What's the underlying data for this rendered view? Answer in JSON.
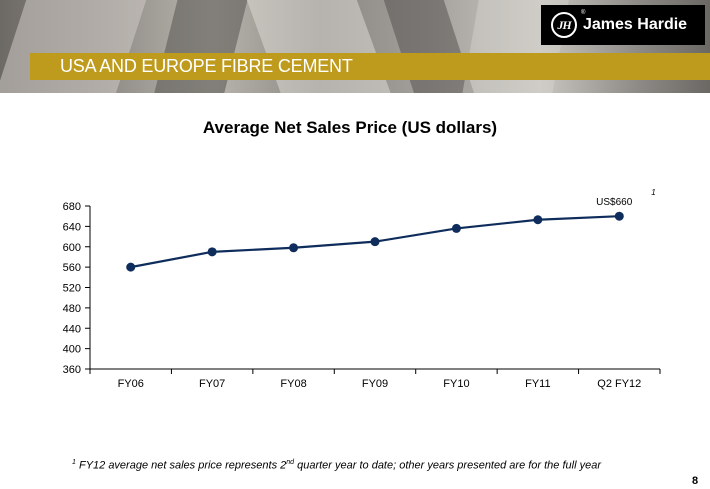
{
  "header": {
    "logo_mark": "JH",
    "logo_text": "James Hardie",
    "logo_reg": "®",
    "section_title": "USA AND EUROPE FIBRE CEMENT"
  },
  "colors": {
    "accent_bar": "#bf9b1d",
    "series_line": "#0f2d5c",
    "logo_bg": "#000000"
  },
  "chart_data": {
    "type": "line",
    "title": "Average Net Sales Price (US dollars)",
    "xlabel": "",
    "ylabel": "",
    "categories": [
      "FY06",
      "FY07",
      "FY08",
      "FY09",
      "FY10",
      "FY11",
      "Q2 FY12"
    ],
    "series": [
      {
        "values": [
          560,
          590,
          598,
          610,
          636,
          653,
          660
        ]
      }
    ],
    "ylim": [
      360,
      680
    ],
    "yticks": [
      360,
      400,
      440,
      480,
      520,
      560,
      600,
      640,
      680
    ],
    "grid": false,
    "legend": "none",
    "annotations": [
      {
        "text": "US$660",
        "superscript": "1",
        "category": "Q2 FY12",
        "value": 660
      }
    ]
  },
  "footnote": {
    "marker": "1",
    "text_before": "FY12 average net sales price represents 2",
    "ordinal_suffix": "nd",
    "text_after": " quarter year to date; other years presented are for the full year"
  },
  "page_number": "8"
}
